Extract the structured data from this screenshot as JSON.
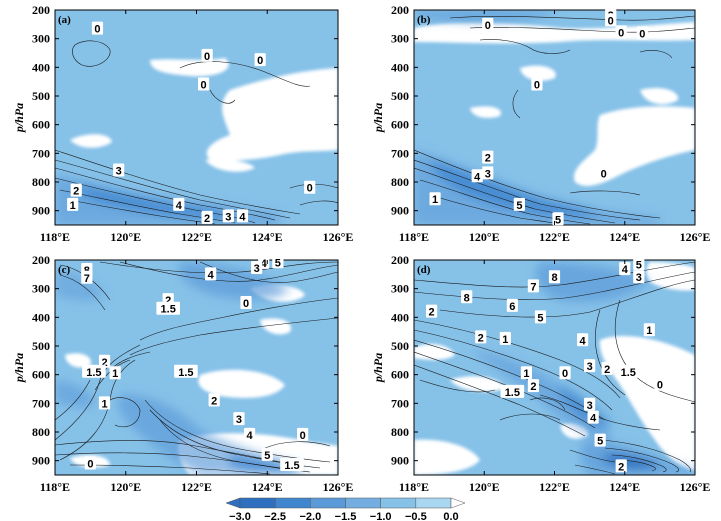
{
  "chart_data": [
    {
      "type": "heatmap",
      "panel_label": "(a)",
      "ylabel": "p/hPa",
      "x_ticks": [
        "118°E",
        "120°E",
        "122°E",
        "124°E",
        "126°E"
      ],
      "y_ticks": [
        "200",
        "300",
        "400",
        "500",
        "600",
        "700",
        "800",
        "900"
      ],
      "xlim": [
        118,
        126
      ],
      "ylim": [
        950,
        200
      ],
      "contour_labels": [
        {
          "text": "0",
          "lon": 119.2,
          "p": 265
        },
        {
          "text": "0",
          "lon": 122.3,
          "p": 360
        },
        {
          "text": "0",
          "lon": 123.8,
          "p": 375
        },
        {
          "text": "0",
          "lon": 122.2,
          "p": 460
        },
        {
          "text": "3",
          "lon": 119.8,
          "p": 760
        },
        {
          "text": "2",
          "lon": 118.6,
          "p": 830
        },
        {
          "text": "1",
          "lon": 118.5,
          "p": 880
        },
        {
          "text": "4",
          "lon": 121.5,
          "p": 880
        },
        {
          "text": "0",
          "lon": 125.2,
          "p": 820
        },
        {
          "text": "2",
          "lon": 122.3,
          "p": 925
        },
        {
          "text": "3",
          "lon": 122.9,
          "p": 920
        },
        {
          "text": "4",
          "lon": 123.3,
          "p": 920
        }
      ]
    },
    {
      "type": "heatmap",
      "panel_label": "(b)",
      "ylabel": "p/hPa",
      "x_ticks": [
        "118°E",
        "120°E",
        "122°E",
        "124°E",
        "126°E"
      ],
      "y_ticks": [
        "200",
        "300",
        "400",
        "500",
        "600",
        "700",
        "800",
        "900"
      ],
      "xlim": [
        118,
        126
      ],
      "ylim": [
        950,
        200
      ],
      "contour_labels": [
        {
          "text": "2",
          "lon": 123.6,
          "p": 218
        },
        {
          "text": "0",
          "lon": 123.6,
          "p": 236
        },
        {
          "text": "0",
          "lon": 120.1,
          "p": 252
        },
        {
          "text": "0",
          "lon": 123.9,
          "p": 278
        },
        {
          "text": "0",
          "lon": 124.5,
          "p": 282
        },
        {
          "text": "0",
          "lon": 121.5,
          "p": 460
        },
        {
          "text": "2",
          "lon": 120.1,
          "p": 715
        },
        {
          "text": "4",
          "lon": 119.8,
          "p": 780
        },
        {
          "text": "3",
          "lon": 120.1,
          "p": 770
        },
        {
          "text": "0",
          "lon": 123.4,
          "p": 770
        },
        {
          "text": "1",
          "lon": 118.6,
          "p": 860
        },
        {
          "text": "5",
          "lon": 121.0,
          "p": 880
        },
        {
          "text": "5",
          "lon": 122.1,
          "p": 930
        }
      ]
    },
    {
      "type": "heatmap",
      "panel_label": "(c)",
      "ylabel": "p/hPa",
      "x_ticks": [
        "118°E",
        "120°E",
        "122°E",
        "124°E",
        "126°E"
      ],
      "y_ticks": [
        "200",
        "300",
        "400",
        "500",
        "600",
        "700",
        "800",
        "900"
      ],
      "xlim": [
        118,
        126
      ],
      "ylim": [
        950,
        200
      ],
      "contour_labels": [
        {
          "text": "4",
          "lon": 123.9,
          "p": 210
        },
        {
          "text": "5",
          "lon": 124.3,
          "p": 208
        },
        {
          "text": "3",
          "lon": 123.7,
          "p": 228
        },
        {
          "text": "8",
          "lon": 118.9,
          "p": 235
        },
        {
          "text": "4",
          "lon": 122.4,
          "p": 250
        },
        {
          "text": "7",
          "lon": 118.9,
          "p": 262
        },
        {
          "text": "2",
          "lon": 121.2,
          "p": 340
        },
        {
          "text": "0",
          "lon": 123.4,
          "p": 350
        },
        {
          "text": "1.5",
          "lon": 121.2,
          "p": 370
        },
        {
          "text": "2",
          "lon": 119.4,
          "p": 555
        },
        {
          "text": "1.5",
          "lon": 119.1,
          "p": 590
        },
        {
          "text": "1",
          "lon": 119.7,
          "p": 595
        },
        {
          "text": "1.5",
          "lon": 121.7,
          "p": 590
        },
        {
          "text": "1",
          "lon": 119.4,
          "p": 700
        },
        {
          "text": "2",
          "lon": 122.5,
          "p": 690
        },
        {
          "text": "3",
          "lon": 123.2,
          "p": 755
        },
        {
          "text": "4",
          "lon": 123.5,
          "p": 810
        },
        {
          "text": "0",
          "lon": 125.0,
          "p": 810
        },
        {
          "text": "5",
          "lon": 124.0,
          "p": 880
        },
        {
          "text": "1.5",
          "lon": 124.7,
          "p": 915
        },
        {
          "text": "0",
          "lon": 119.0,
          "p": 910
        }
      ]
    },
    {
      "type": "heatmap",
      "panel_label": "(d)",
      "ylabel": "p/hPa",
      "x_ticks": [
        "118°E",
        "120°E",
        "122°E",
        "124°E",
        "126°E"
      ],
      "y_ticks": [
        "200",
        "300",
        "400",
        "500",
        "600",
        "700",
        "800",
        "900"
      ],
      "xlim": [
        118,
        126
      ],
      "ylim": [
        950,
        200
      ],
      "contour_labels": [
        {
          "text": "5",
          "lon": 124.4,
          "p": 215
        },
        {
          "text": "4",
          "lon": 124.0,
          "p": 232
        },
        {
          "text": "3",
          "lon": 124.4,
          "p": 260
        },
        {
          "text": "8",
          "lon": 122.0,
          "p": 260
        },
        {
          "text": "7",
          "lon": 121.4,
          "p": 292
        },
        {
          "text": "8",
          "lon": 119.5,
          "p": 330
        },
        {
          "text": "6",
          "lon": 120.8,
          "p": 360
        },
        {
          "text": "2",
          "lon": 118.5,
          "p": 380
        },
        {
          "text": "5",
          "lon": 121.6,
          "p": 400
        },
        {
          "text": "1",
          "lon": 124.7,
          "p": 445
        },
        {
          "text": "2",
          "lon": 119.9,
          "p": 470
        },
        {
          "text": "1",
          "lon": 120.6,
          "p": 475
        },
        {
          "text": "4",
          "lon": 122.8,
          "p": 480
        },
        {
          "text": "3",
          "lon": 123.0,
          "p": 570
        },
        {
          "text": "2",
          "lon": 123.5,
          "p": 580
        },
        {
          "text": "1.5",
          "lon": 124.1,
          "p": 590
        },
        {
          "text": "0",
          "lon": 122.3,
          "p": 595
        },
        {
          "text": "1",
          "lon": 121.2,
          "p": 595
        },
        {
          "text": "0",
          "lon": 125.0,
          "p": 635
        },
        {
          "text": "2",
          "lon": 121.4,
          "p": 640
        },
        {
          "text": "1.5",
          "lon": 120.8,
          "p": 660
        },
        {
          "text": "3",
          "lon": 123.0,
          "p": 705
        },
        {
          "text": "4",
          "lon": 123.1,
          "p": 750
        },
        {
          "text": "5",
          "lon": 123.3,
          "p": 830
        },
        {
          "text": "2",
          "lon": 123.9,
          "p": 920
        }
      ]
    }
  ],
  "colorbar": {
    "ticks": [
      "-3.0",
      "-2.5",
      "-2.0",
      "-1.5",
      "-1.0",
      "-0.5",
      "0.0"
    ],
    "colors": [
      "#2e6fbf",
      "#3f86cf",
      "#5b9ad8",
      "#74aee0",
      "#86c1e8",
      "#a9d6f1",
      "#ffffff"
    ]
  }
}
